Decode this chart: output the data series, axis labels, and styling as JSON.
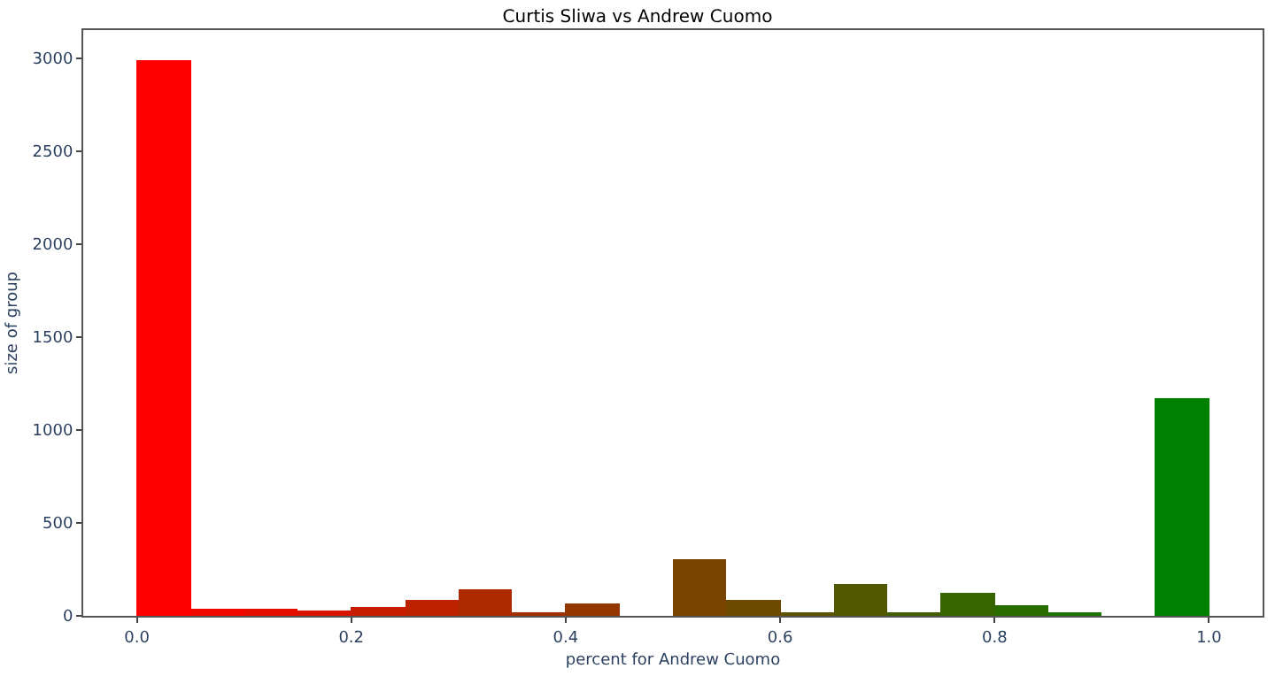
{
  "chart_data": {
    "type": "histogram",
    "title": "Curtis Sliwa vs Andrew Cuomo",
    "xlabel": "percent for Andrew Cuomo",
    "ylabel": "size of group",
    "bins": [
      0.0,
      0.05,
      0.1,
      0.15,
      0.2,
      0.25,
      0.3,
      0.35,
      0.4,
      0.45,
      0.5,
      0.55,
      0.6,
      0.65,
      0.7,
      0.75,
      0.8,
      0.85,
      0.9,
      0.95,
      1.0
    ],
    "values": [
      2990,
      40,
      40,
      30,
      50,
      90,
      140,
      20,
      70,
      0,
      300,
      90,
      10,
      170,
      10,
      120,
      60,
      10,
      0,
      1170
    ],
    "colors": [
      "#ff0000",
      "#f20700",
      "#e40d00",
      "#d71400",
      "#c91b00",
      "#bc2200",
      "#ae2800",
      "#a12f00",
      "#943600",
      "#863d00",
      "#794300",
      "#6b4a00",
      "#5e5100",
      "#515800",
      "#435e00",
      "#366500",
      "#286c00",
      "#1b7300",
      "#0d7900",
      "#008000"
    ],
    "xlim": [
      -0.05,
      1.05
    ],
    "xticks": [
      {
        "value": 0,
        "label": "0.0"
      },
      0.2,
      0.4,
      0.6,
      0.8,
      {
        "value": 1,
        "label": "1.0"
      }
    ],
    "ylim": [
      0,
      3150
    ],
    "yticks": [
      0,
      500,
      1000,
      1500,
      2000,
      2500,
      3000
    ]
  }
}
